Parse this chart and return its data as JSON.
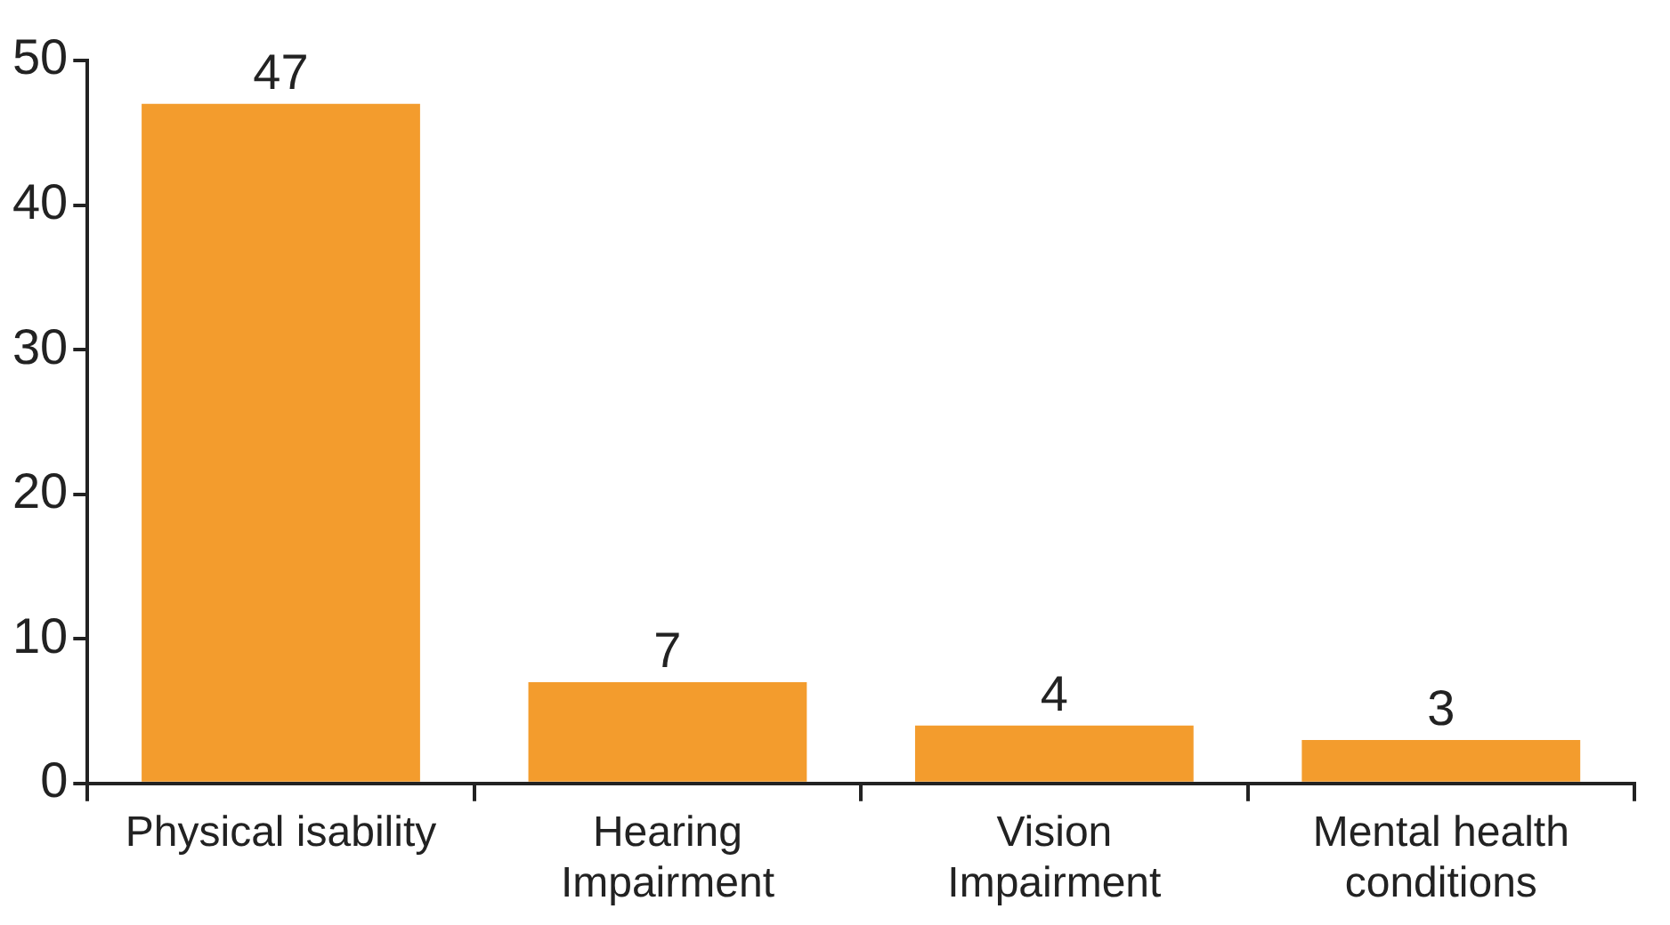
{
  "chart_data": {
    "type": "bar",
    "categories": [
      "Physical isability",
      "Hearing Impairment",
      "Vision Impairment",
      "Mental health conditions"
    ],
    "values": [
      47,
      7,
      4,
      3
    ],
    "color": "#f39c2d",
    "ylim": [
      0,
      50
    ],
    "yticks": [
      0,
      10,
      20,
      30,
      40,
      50
    ],
    "grid": false,
    "data_labels": true
  }
}
